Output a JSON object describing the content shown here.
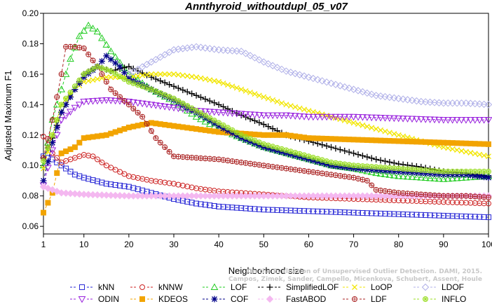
{
  "chart_data": {
    "type": "line",
    "title": "Annthyroid_withoutdupl_05_v07",
    "xlabel": "Neighborhood size",
    "ylabel": "Adjusted Maximum F1",
    "xlim": [
      1,
      100
    ],
    "ylim": [
      0.055,
      0.2
    ],
    "x_ticks": [
      1,
      10,
      20,
      30,
      40,
      50,
      60,
      70,
      80,
      90,
      100
    ],
    "y_ticks": [
      0.06,
      0.08,
      0.1,
      0.12,
      0.14,
      0.16,
      0.18,
      0.2
    ],
    "x_tick_labels": [
      "1",
      "10",
      "20",
      "30",
      "40",
      "50",
      "60",
      "70",
      "80",
      "90",
      "100"
    ],
    "y_tick_labels": [
      "0.06",
      "0.08",
      "0.10",
      "0.12",
      "0.14",
      "0.16",
      "0.18",
      "0.20"
    ],
    "grid": false,
    "legend_position": "bottom",
    "series": [
      {
        "name": "kNN",
        "color": "#2a2ad6",
        "marker": "square",
        "points": [
          [
            1,
            0.106
          ],
          [
            3,
            0.104
          ],
          [
            5,
            0.1
          ],
          [
            8,
            0.094
          ],
          [
            10,
            0.092
          ],
          [
            15,
            0.088
          ],
          [
            20,
            0.086
          ],
          [
            25,
            0.082
          ],
          [
            30,
            0.078
          ],
          [
            35,
            0.075
          ],
          [
            40,
            0.073
          ],
          [
            50,
            0.071
          ],
          [
            60,
            0.07
          ],
          [
            70,
            0.069
          ],
          [
            80,
            0.068
          ],
          [
            90,
            0.067
          ],
          [
            100,
            0.066
          ]
        ]
      },
      {
        "name": "kNNW",
        "color": "#cc2222",
        "marker": "circle",
        "points": [
          [
            1,
            0.119
          ],
          [
            3,
            0.108
          ],
          [
            5,
            0.102
          ],
          [
            8,
            0.105
          ],
          [
            10,
            0.107
          ],
          [
            12,
            0.106
          ],
          [
            15,
            0.1
          ],
          [
            20,
            0.093
          ],
          [
            25,
            0.09
          ],
          [
            30,
            0.088
          ],
          [
            35,
            0.085
          ],
          [
            40,
            0.083
          ],
          [
            50,
            0.081
          ],
          [
            60,
            0.079
          ],
          [
            70,
            0.078
          ],
          [
            80,
            0.077
          ],
          [
            90,
            0.076
          ],
          [
            100,
            0.075
          ]
        ]
      },
      {
        "name": "LOF",
        "color": "#22cc22",
        "marker": "triangle-up",
        "points": [
          [
            1,
            0.1
          ],
          [
            3,
            0.13
          ],
          [
            5,
            0.15
          ],
          [
            7,
            0.17
          ],
          [
            9,
            0.185
          ],
          [
            11,
            0.192
          ],
          [
            13,
            0.188
          ],
          [
            16,
            0.175
          ],
          [
            20,
            0.16
          ],
          [
            25,
            0.15
          ],
          [
            30,
            0.142
          ],
          [
            35,
            0.132
          ],
          [
            40,
            0.124
          ],
          [
            45,
            0.118
          ],
          [
            50,
            0.112
          ],
          [
            55,
            0.108
          ],
          [
            60,
            0.104
          ],
          [
            65,
            0.1
          ],
          [
            70,
            0.098
          ],
          [
            75,
            0.095
          ],
          [
            80,
            0.093
          ],
          [
            85,
            0.092
          ],
          [
            90,
            0.091
          ],
          [
            95,
            0.092
          ],
          [
            100,
            0.093
          ]
        ]
      },
      {
        "name": "SimplifiedLOF",
        "color": "#000000",
        "marker": "plus",
        "points": [
          [
            1,
            0.105
          ],
          [
            3,
            0.118
          ],
          [
            5,
            0.135
          ],
          [
            8,
            0.15
          ],
          [
            10,
            0.16
          ],
          [
            13,
            0.165
          ],
          [
            16,
            0.162
          ],
          [
            20,
            0.165
          ],
          [
            25,
            0.158
          ],
          [
            30,
            0.152
          ],
          [
            35,
            0.146
          ],
          [
            40,
            0.14
          ],
          [
            45,
            0.133
          ],
          [
            50,
            0.127
          ],
          [
            55,
            0.12
          ],
          [
            60,
            0.116
          ],
          [
            65,
            0.112
          ],
          [
            70,
            0.108
          ],
          [
            75,
            0.104
          ],
          [
            80,
            0.101
          ],
          [
            85,
            0.099
          ],
          [
            90,
            0.096
          ],
          [
            95,
            0.095
          ],
          [
            100,
            0.093
          ]
        ]
      },
      {
        "name": "LoOP",
        "color": "#f2e600",
        "marker": "x",
        "points": [
          [
            1,
            0.098
          ],
          [
            3,
            0.12
          ],
          [
            5,
            0.14
          ],
          [
            8,
            0.15
          ],
          [
            10,
            0.155
          ],
          [
            15,
            0.158
          ],
          [
            20,
            0.158
          ],
          [
            25,
            0.16
          ],
          [
            30,
            0.16
          ],
          [
            35,
            0.158
          ],
          [
            40,
            0.155
          ],
          [
            45,
            0.15
          ],
          [
            50,
            0.145
          ],
          [
            55,
            0.14
          ],
          [
            60,
            0.136
          ],
          [
            65,
            0.132
          ],
          [
            70,
            0.128
          ],
          [
            75,
            0.124
          ],
          [
            80,
            0.12
          ],
          [
            85,
            0.116
          ],
          [
            90,
            0.112
          ],
          [
            95,
            0.109
          ],
          [
            100,
            0.106
          ]
        ]
      },
      {
        "name": "LDOF",
        "color": "#b0b0e8",
        "marker": "diamond",
        "points": [
          [
            20,
            0.16
          ],
          [
            25,
            0.168
          ],
          [
            30,
            0.176
          ],
          [
            35,
            0.178
          ],
          [
            40,
            0.176
          ],
          [
            45,
            0.175
          ],
          [
            50,
            0.168
          ],
          [
            55,
            0.162
          ],
          [
            60,
            0.158
          ],
          [
            65,
            0.154
          ],
          [
            70,
            0.15
          ],
          [
            75,
            0.146
          ],
          [
            80,
            0.144
          ],
          [
            85,
            0.142
          ],
          [
            90,
            0.141
          ],
          [
            95,
            0.141
          ],
          [
            100,
            0.14
          ]
        ]
      },
      {
        "name": "ODIN",
        "color": "#9922dd",
        "marker": "triangle-down",
        "points": [
          [
            1,
            0.087
          ],
          [
            3,
            0.11
          ],
          [
            5,
            0.13
          ],
          [
            8,
            0.138
          ],
          [
            10,
            0.142
          ],
          [
            15,
            0.143
          ],
          [
            20,
            0.142
          ],
          [
            25,
            0.14
          ],
          [
            30,
            0.138
          ],
          [
            35,
            0.136
          ],
          [
            40,
            0.135
          ],
          [
            45,
            0.134
          ],
          [
            50,
            0.133
          ],
          [
            55,
            0.133
          ],
          [
            60,
            0.132
          ],
          [
            70,
            0.132
          ],
          [
            80,
            0.131
          ],
          [
            90,
            0.13
          ],
          [
            100,
            0.13
          ]
        ]
      },
      {
        "name": "KDEOS",
        "color": "#f2a400",
        "marker": "square-filled",
        "points": [
          [
            1,
            0.069
          ],
          [
            3,
            0.082
          ],
          [
            5,
            0.108
          ],
          [
            8,
            0.112
          ],
          [
            10,
            0.118
          ],
          [
            15,
            0.12
          ],
          [
            20,
            0.125
          ],
          [
            25,
            0.128
          ],
          [
            30,
            0.126
          ],
          [
            35,
            0.124
          ],
          [
            40,
            0.122
          ],
          [
            45,
            0.121
          ],
          [
            50,
            0.12
          ],
          [
            55,
            0.12
          ],
          [
            60,
            0.118
          ],
          [
            70,
            0.117
          ],
          [
            80,
            0.116
          ],
          [
            90,
            0.115
          ],
          [
            100,
            0.114
          ]
        ]
      },
      {
        "name": "COF",
        "color": "#000088",
        "marker": "asterisk",
        "points": [
          [
            1,
            0.09
          ],
          [
            3,
            0.115
          ],
          [
            5,
            0.135
          ],
          [
            8,
            0.15
          ],
          [
            10,
            0.158
          ],
          [
            13,
            0.165
          ],
          [
            15,
            0.172
          ],
          [
            18,
            0.165
          ],
          [
            20,
            0.157
          ],
          [
            25,
            0.15
          ],
          [
            30,
            0.143
          ],
          [
            35,
            0.135
          ],
          [
            40,
            0.126
          ],
          [
            45,
            0.118
          ],
          [
            50,
            0.112
          ],
          [
            55,
            0.108
          ],
          [
            60,
            0.104
          ],
          [
            65,
            0.1
          ],
          [
            70,
            0.098
          ],
          [
            75,
            0.097
          ],
          [
            80,
            0.096
          ],
          [
            85,
            0.095
          ],
          [
            90,
            0.094
          ],
          [
            95,
            0.094
          ],
          [
            100,
            0.092
          ]
        ]
      },
      {
        "name": "FastABOD",
        "color": "#f4b8f0",
        "marker": "diamond-filled",
        "points": [
          [
            1,
            0.086
          ],
          [
            5,
            0.082
          ],
          [
            10,
            0.081
          ],
          [
            20,
            0.08
          ],
          [
            30,
            0.08
          ],
          [
            40,
            0.08
          ],
          [
            50,
            0.08
          ],
          [
            60,
            0.08
          ],
          [
            70,
            0.08
          ],
          [
            80,
            0.08
          ],
          [
            90,
            0.08
          ],
          [
            100,
            0.08
          ]
        ]
      },
      {
        "name": "LDF",
        "color": "#aa2222",
        "marker": "circle-plus",
        "points": [
          [
            1,
            0.105
          ],
          [
            3,
            0.13
          ],
          [
            5,
            0.16
          ],
          [
            6,
            0.178
          ],
          [
            8,
            0.178
          ],
          [
            10,
            0.177
          ],
          [
            13,
            0.165
          ],
          [
            16,
            0.15
          ],
          [
            20,
            0.14
          ],
          [
            23,
            0.132
          ],
          [
            26,
            0.118
          ],
          [
            30,
            0.106
          ],
          [
            35,
            0.105
          ],
          [
            40,
            0.104
          ],
          [
            45,
            0.102
          ],
          [
            50,
            0.1
          ],
          [
            55,
            0.098
          ],
          [
            60,
            0.096
          ],
          [
            65,
            0.094
          ],
          [
            70,
            0.092
          ],
          [
            73,
            0.09
          ],
          [
            75,
            0.084
          ],
          [
            80,
            0.082
          ],
          [
            85,
            0.081
          ],
          [
            90,
            0.08
          ],
          [
            95,
            0.08
          ],
          [
            100,
            0.079
          ]
        ]
      },
      {
        "name": "INFLO",
        "color": "#99dd22",
        "marker": "circle-star",
        "points": [
          [
            1,
            0.103
          ],
          [
            3,
            0.12
          ],
          [
            5,
            0.14
          ],
          [
            8,
            0.152
          ],
          [
            10,
            0.16
          ],
          [
            13,
            0.165
          ],
          [
            16,
            0.162
          ],
          [
            20,
            0.155
          ],
          [
            25,
            0.15
          ],
          [
            30,
            0.144
          ],
          [
            35,
            0.136
          ],
          [
            40,
            0.128
          ],
          [
            45,
            0.12
          ],
          [
            50,
            0.114
          ],
          [
            55,
            0.11
          ],
          [
            60,
            0.106
          ],
          [
            65,
            0.102
          ],
          [
            70,
            0.1
          ],
          [
            75,
            0.099
          ],
          [
            80,
            0.098
          ],
          [
            85,
            0.097
          ],
          [
            90,
            0.096
          ],
          [
            95,
            0.096
          ],
          [
            100,
            0.096
          ]
        ]
      }
    ]
  },
  "watermark": "Campos, Zimek, Sander, Campello, Micenkova, Schubert, Assent, Houle",
  "watermark_line1": "On the Evaluation of Unsupervised Outlier Detection. DAMI, 2015."
}
